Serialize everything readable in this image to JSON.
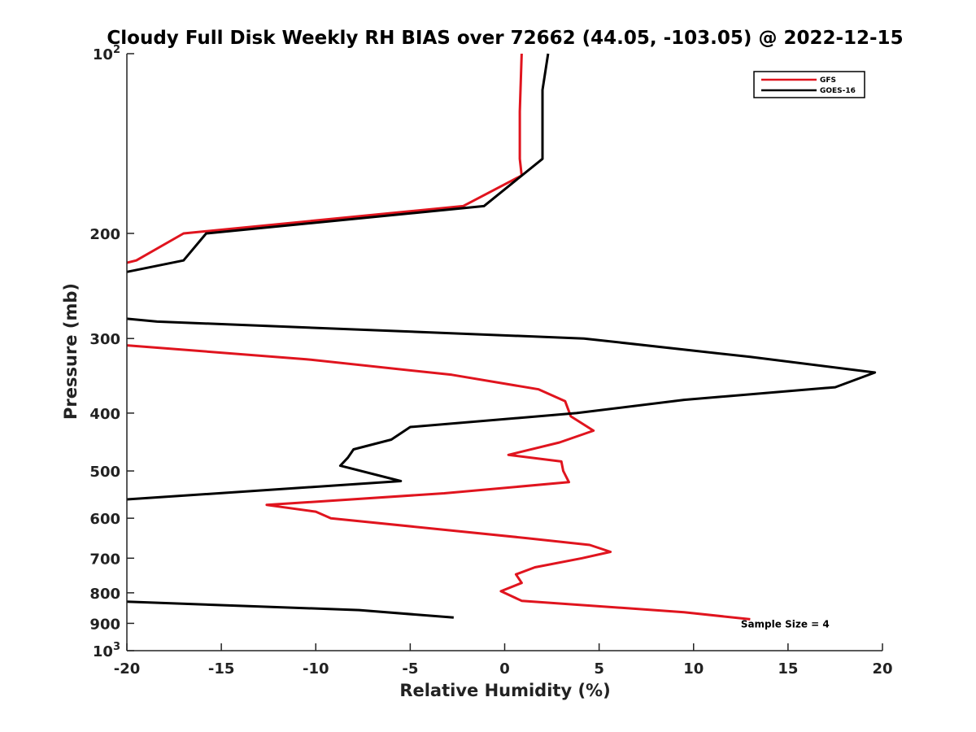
{
  "chart_data": {
    "type": "line",
    "title": "Cloudy Full Disk Weekly RH BIAS over 72662 (44.05, -103.05) @ 2022-12-15",
    "xlabel": "Relative Humidity (%)",
    "ylabel": "Pressure (mb)",
    "xlim": [
      -20,
      20
    ],
    "ylim": [
      1000,
      100
    ],
    "yscale": "log",
    "grid": false,
    "legend_position": "top-right",
    "x_ticks": [
      -20,
      -15,
      -10,
      -5,
      0,
      5,
      10,
      15,
      20
    ],
    "x_tick_labels": [
      "-20",
      "-15",
      "-10",
      "-5",
      "0",
      "5",
      "10",
      "15",
      "20"
    ],
    "y_ticks": [
      100,
      200,
      300,
      400,
      500,
      600,
      700,
      800,
      900,
      1000
    ],
    "y_tick_labels": [
      {
        "base": "10",
        "exp": "2"
      },
      {
        "base": "200",
        "exp": ""
      },
      {
        "base": "300",
        "exp": ""
      },
      {
        "base": "400",
        "exp": ""
      },
      {
        "base": "500",
        "exp": ""
      },
      {
        "base": "600",
        "exp": ""
      },
      {
        "base": "700",
        "exp": ""
      },
      {
        "base": "800",
        "exp": ""
      },
      {
        "base": "900",
        "exp": ""
      },
      {
        "base": "10",
        "exp": "3"
      }
    ],
    "series": [
      {
        "name": "GFS",
        "color": "#e0141e",
        "segments": [
          [
            [
              0.9,
              100
            ],
            [
              0.8,
              125
            ],
            [
              0.8,
              150
            ],
            [
              0.9,
              160
            ],
            [
              -2.2,
              180
            ],
            [
              -17,
              200
            ],
            [
              -19.5,
              222
            ],
            [
              -20,
              224
            ]
          ],
          [
            [
              -20,
              308
            ],
            [
              -10.5,
              325
            ],
            [
              -2.8,
              345
            ],
            [
              1.8,
              365
            ],
            [
              3.2,
              382
            ],
            [
              3.5,
              405
            ],
            [
              4.7,
              428
            ],
            [
              2.9,
              448
            ],
            [
              0.2,
              470
            ],
            [
              3.0,
              482
            ],
            [
              3.1,
              500
            ],
            [
              3.4,
              522
            ],
            [
              -3.2,
              545
            ],
            [
              -12.6,
              570
            ],
            [
              -10.0,
              585
            ],
            [
              -9.2,
              600
            ],
            [
              1.2,
              648
            ],
            [
              4.5,
              665
            ],
            [
              5.6,
              683
            ],
            [
              4.1,
              700
            ],
            [
              1.6,
              725
            ],
            [
              0.6,
              745
            ],
            [
              0.9,
              770
            ],
            [
              -0.2,
              795
            ],
            [
              0.9,
              825
            ],
            [
              9.5,
              862
            ],
            [
              13.0,
              886
            ]
          ]
        ]
      },
      {
        "name": "GOES-16",
        "color": "#000000",
        "segments": [
          [
            [
              2.3,
              100
            ],
            [
              2.0,
              115
            ],
            [
              2.0,
              150
            ],
            [
              -1.1,
              180
            ],
            [
              -15.8,
              200
            ],
            [
              -17.0,
              222
            ],
            [
              -20,
              232
            ]
          ],
          [
            [
              -20,
              278
            ],
            [
              -18.4,
              281
            ],
            [
              4.2,
              300
            ],
            [
              13.0,
              322
            ],
            [
              19.6,
              342
            ],
            [
              17.5,
              362
            ],
            [
              9.5,
              380
            ],
            [
              3.8,
              400
            ],
            [
              -5.0,
              422
            ],
            [
              -6.0,
              443
            ],
            [
              -8.0,
              460
            ],
            [
              -8.3,
              475
            ],
            [
              -8.7,
              490
            ],
            [
              -5.5,
              520
            ],
            [
              -20,
              558
            ]
          ],
          [
            [
              -20,
              828
            ],
            [
              -7.7,
              855
            ],
            [
              -2.7,
              880
            ]
          ]
        ]
      }
    ],
    "annotations": [
      {
        "text": "Sample Size = 4",
        "x": 12.5,
        "y": 900
      }
    ]
  }
}
